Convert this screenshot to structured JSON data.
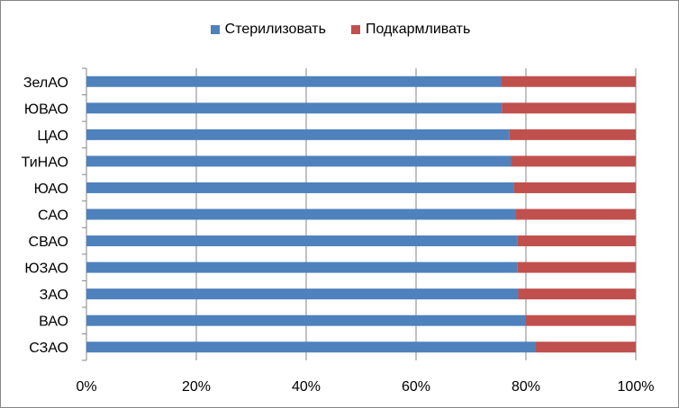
{
  "chart_data": {
    "type": "bar",
    "orientation": "horizontal",
    "stacked": "percent",
    "categories": [
      "ЗелАО",
      "ЮВАО",
      "ЦАО",
      "ТиНАО",
      "ЮАО",
      "САО",
      "СВАО",
      "ЮЗАО",
      "ЗАО",
      "ВАО",
      "СЗАО"
    ],
    "series": [
      {
        "name": "Стерилизовать",
        "color": "#4F81BD",
        "values": [
          75.5,
          75.6,
          77,
          77.3,
          77.8,
          78.2,
          78.4,
          78.4,
          78.6,
          80,
          81.8
        ]
      },
      {
        "name": "Подкармливать",
        "color": "#C0504D",
        "values": [
          24.5,
          24.4,
          23,
          22.7,
          22.2,
          21.8,
          21.6,
          21.6,
          21.4,
          20,
          18.2
        ]
      }
    ],
    "xaxis": {
      "ticks": [
        "0%",
        "20%",
        "40%",
        "60%",
        "80%",
        "100%"
      ],
      "range": [
        0,
        100
      ],
      "grid": true
    },
    "legend": "top"
  }
}
